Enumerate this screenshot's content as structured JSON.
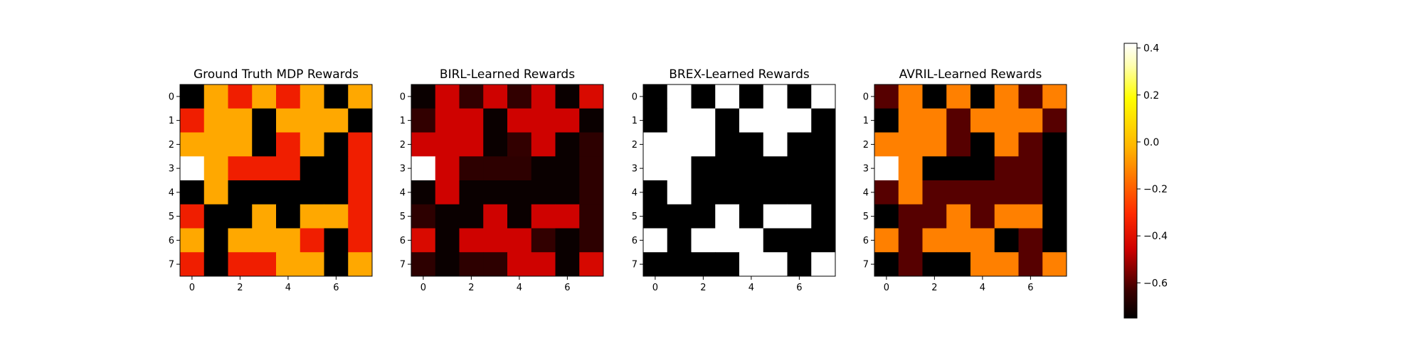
{
  "colors": {
    "cmap_stops": [
      "#000000",
      "#3b0000",
      "#cd0000",
      "#ff2a00",
      "#ff8c00",
      "#ffb400",
      "#ffff00",
      "#ffffb0",
      "#ffffff"
    ],
    "cmap_positions": [
      0.0,
      0.1,
      0.25,
      0.38,
      0.55,
      0.62,
      0.8,
      0.92,
      1.0
    ]
  },
  "chart_data": [
    {
      "type": "heatmap",
      "title": "Ground Truth MDP Rewards",
      "x_ticks": [
        "0",
        "2",
        "4",
        "6"
      ],
      "y_ticks": [
        "0",
        "1",
        "2",
        "3",
        "4",
        "5",
        "6",
        "7"
      ],
      "values": [
        [
          -0.75,
          -0.05,
          -0.35,
          -0.05,
          -0.35,
          -0.05,
          -0.75,
          -0.05
        ],
        [
          -0.35,
          -0.05,
          -0.05,
          -0.75,
          -0.05,
          -0.05,
          -0.05,
          -0.75
        ],
        [
          -0.05,
          -0.05,
          -0.05,
          -0.75,
          -0.35,
          -0.05,
          -0.75,
          -0.35
        ],
        [
          0.42,
          -0.05,
          -0.35,
          -0.35,
          -0.35,
          -0.75,
          -0.75,
          -0.35
        ],
        [
          -0.75,
          -0.05,
          -0.75,
          -0.75,
          -0.75,
          -0.75,
          -0.75,
          -0.35
        ],
        [
          -0.35,
          -0.75,
          -0.75,
          -0.05,
          -0.75,
          -0.05,
          -0.05,
          -0.35
        ],
        [
          -0.05,
          -0.75,
          -0.05,
          -0.05,
          -0.05,
          -0.35,
          -0.75,
          -0.35
        ],
        [
          -0.35,
          -0.75,
          -0.35,
          -0.35,
          -0.05,
          -0.05,
          -0.75,
          -0.05
        ]
      ]
    },
    {
      "type": "heatmap",
      "title": "BIRL-Learned Rewards",
      "x_ticks": [
        "0",
        "2",
        "4",
        "6"
      ],
      "y_ticks": [
        "0",
        "1",
        "2",
        "3",
        "4",
        "5",
        "6",
        "7"
      ],
      "values": [
        [
          -0.73,
          -0.45,
          -0.65,
          -0.45,
          -0.65,
          -0.45,
          -0.73,
          -0.42
        ],
        [
          -0.65,
          -0.45,
          -0.45,
          -0.73,
          -0.45,
          -0.45,
          -0.45,
          -0.73
        ],
        [
          -0.45,
          -0.45,
          -0.45,
          -0.73,
          -0.65,
          -0.45,
          -0.73,
          -0.66
        ],
        [
          0.42,
          -0.45,
          -0.66,
          -0.66,
          -0.66,
          -0.73,
          -0.73,
          -0.66
        ],
        [
          -0.73,
          -0.45,
          -0.73,
          -0.73,
          -0.73,
          -0.73,
          -0.73,
          -0.66
        ],
        [
          -0.66,
          -0.73,
          -0.73,
          -0.45,
          -0.73,
          -0.45,
          -0.45,
          -0.66
        ],
        [
          -0.42,
          -0.73,
          -0.45,
          -0.45,
          -0.45,
          -0.65,
          -0.73,
          -0.66
        ],
        [
          -0.66,
          -0.73,
          -0.66,
          -0.66,
          -0.45,
          -0.45,
          -0.73,
          -0.43
        ]
      ]
    },
    {
      "type": "heatmap",
      "title": "BREX-Learned Rewards",
      "x_ticks": [
        "0",
        "2",
        "4",
        "6"
      ],
      "y_ticks": [
        "0",
        "1",
        "2",
        "3",
        "4",
        "5",
        "6",
        "7"
      ],
      "values": [
        [
          -0.75,
          0.42,
          -0.75,
          0.42,
          -0.75,
          0.42,
          -0.75,
          0.42
        ],
        [
          -0.75,
          0.42,
          0.42,
          -0.75,
          0.42,
          0.42,
          0.42,
          -0.75
        ],
        [
          0.42,
          0.42,
          0.42,
          -0.75,
          -0.75,
          0.42,
          -0.75,
          -0.75
        ],
        [
          0.42,
          0.42,
          -0.75,
          -0.75,
          -0.75,
          -0.75,
          -0.75,
          -0.75
        ],
        [
          -0.75,
          0.42,
          -0.75,
          -0.75,
          -0.75,
          -0.75,
          -0.75,
          -0.75
        ],
        [
          -0.75,
          -0.75,
          -0.75,
          0.42,
          -0.75,
          0.42,
          0.42,
          -0.75
        ],
        [
          0.42,
          -0.75,
          0.42,
          0.42,
          0.42,
          -0.75,
          -0.75,
          -0.75
        ],
        [
          -0.75,
          -0.75,
          -0.75,
          -0.75,
          0.42,
          0.42,
          -0.75,
          0.42
        ]
      ]
    },
    {
      "type": "heatmap",
      "title": "AVRIL-Learned Rewards",
      "x_ticks": [
        "0",
        "2",
        "4",
        "6"
      ],
      "y_ticks": [
        "0",
        "1",
        "2",
        "3",
        "4",
        "5",
        "6",
        "7"
      ],
      "values": [
        [
          -0.6,
          -0.13,
          -0.75,
          -0.13,
          -0.75,
          -0.13,
          -0.6,
          -0.13
        ],
        [
          -0.75,
          -0.13,
          -0.13,
          -0.6,
          -0.13,
          -0.13,
          -0.13,
          -0.6
        ],
        [
          -0.13,
          -0.13,
          -0.13,
          -0.6,
          -0.75,
          -0.13,
          -0.6,
          -0.75
        ],
        [
          0.42,
          -0.13,
          -0.75,
          -0.75,
          -0.75,
          -0.6,
          -0.6,
          -0.75
        ],
        [
          -0.6,
          -0.13,
          -0.6,
          -0.6,
          -0.6,
          -0.6,
          -0.6,
          -0.75
        ],
        [
          -0.75,
          -0.6,
          -0.6,
          -0.13,
          -0.6,
          -0.13,
          -0.13,
          -0.75
        ],
        [
          -0.13,
          -0.6,
          -0.13,
          -0.13,
          -0.13,
          -0.75,
          -0.6,
          -0.75
        ],
        [
          -0.75,
          -0.6,
          -0.75,
          -0.75,
          -0.13,
          -0.13,
          -0.6,
          -0.13
        ]
      ]
    }
  ],
  "colorbar": {
    "vmin": -0.75,
    "vmax": 0.42,
    "ticks": [
      {
        "value": 0.4,
        "label": "0.4"
      },
      {
        "value": 0.2,
        "label": "0.2"
      },
      {
        "value": 0.0,
        "label": "0.0"
      },
      {
        "value": -0.2,
        "label": "−0.2"
      },
      {
        "value": -0.4,
        "label": "−0.4"
      },
      {
        "value": -0.6,
        "label": "−0.6"
      }
    ]
  }
}
